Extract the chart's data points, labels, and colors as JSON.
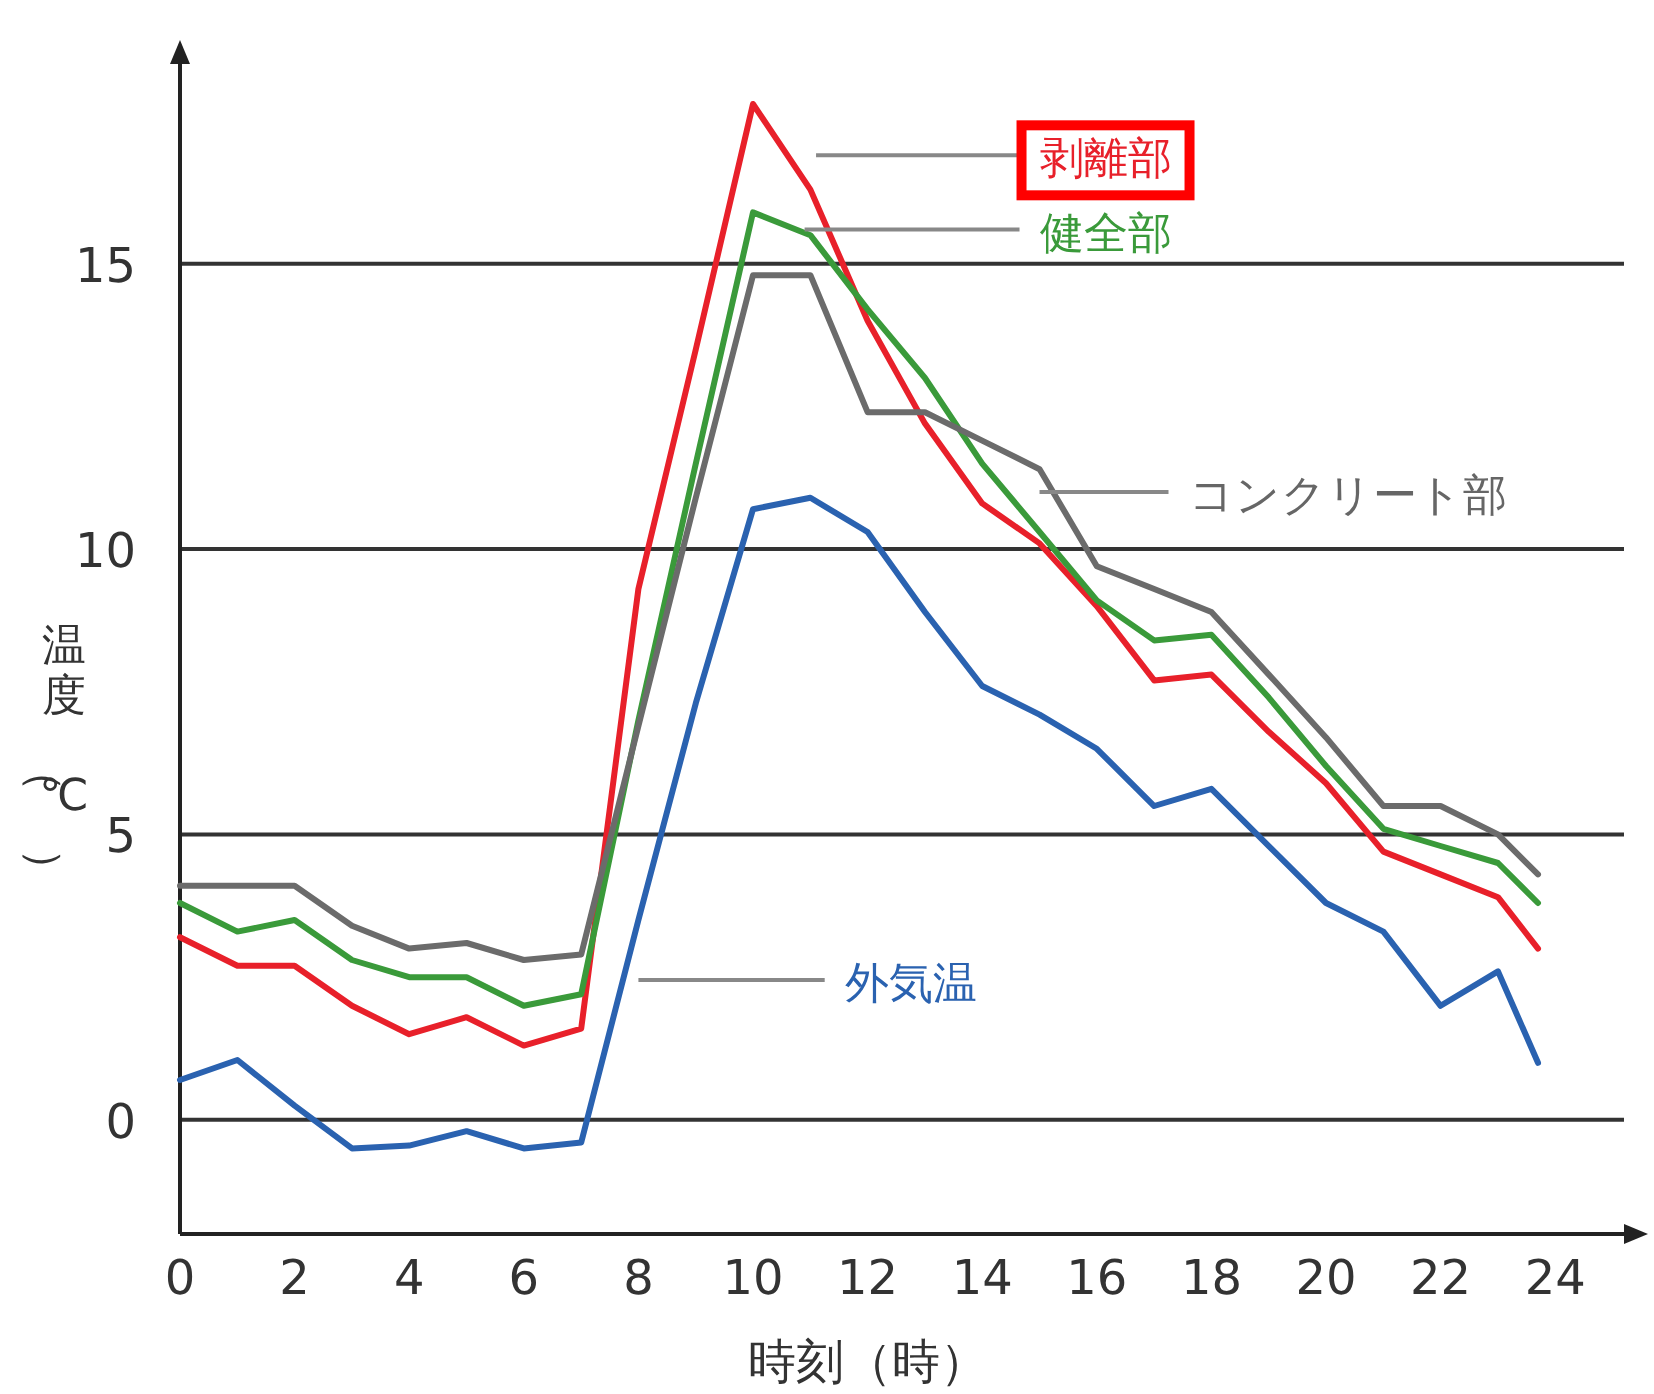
{
  "chart_data": {
    "type": "line",
    "xlabel": "時刻（時）",
    "ylabel": "温度（℃）",
    "x": [
      0,
      1,
      2,
      3,
      4,
      5,
      6,
      7,
      8,
      9,
      10,
      11,
      12,
      13,
      14,
      15,
      16,
      17,
      18,
      19,
      20,
      21,
      22,
      23,
      23.7
    ],
    "xlim": [
      0,
      25.2
    ],
    "xticks": [
      0,
      2,
      4,
      6,
      8,
      10,
      12,
      14,
      16,
      18,
      20,
      22,
      24
    ],
    "ylim": [
      -2,
      18.5
    ],
    "yticks": [
      0,
      5,
      10,
      15
    ],
    "grid": "y",
    "legend": false,
    "marker": "none",
    "line_style": "solid",
    "series": [
      {
        "name": "剥離部",
        "color": "#e8202a",
        "values": [
          3.2,
          2.7,
          2.7,
          2.0,
          1.5,
          1.8,
          1.3,
          1.6,
          9.3,
          13.5,
          17.8,
          16.3,
          14.0,
          12.2,
          10.8,
          10.1,
          9.0,
          7.7,
          7.8,
          6.8,
          5.9,
          4.7,
          4.3,
          3.9,
          3.0
        ]
      },
      {
        "name": "健全部",
        "color": "#3a9a3a",
        "values": [
          3.8,
          3.3,
          3.5,
          2.8,
          2.5,
          2.5,
          2.0,
          2.2,
          7.0,
          11.5,
          15.9,
          15.5,
          14.2,
          13.0,
          11.5,
          10.3,
          9.1,
          8.4,
          8.5,
          7.4,
          6.2,
          5.1,
          4.8,
          4.5,
          3.8
        ]
      },
      {
        "name": "コンクリート部",
        "color": "#6b6b6b",
        "values": [
          4.1,
          4.1,
          4.1,
          3.4,
          3.0,
          3.1,
          2.8,
          2.9,
          6.9,
          10.9,
          14.8,
          14.8,
          12.4,
          12.4,
          11.9,
          11.4,
          9.7,
          9.3,
          8.9,
          7.8,
          6.7,
          5.5,
          5.5,
          5.0,
          4.3
        ]
      },
      {
        "name": "外気温",
        "color": "#2a62b0",
        "values": [
          0.7,
          1.05,
          0.25,
          -0.5,
          -0.45,
          -0.2,
          -0.5,
          -0.4,
          3.5,
          7.3,
          10.7,
          10.9,
          10.3,
          8.9,
          7.6,
          7.1,
          6.5,
          5.5,
          5.8,
          4.8,
          3.8,
          3.3,
          2.0,
          2.6,
          1.0
        ]
      }
    ]
  }
}
